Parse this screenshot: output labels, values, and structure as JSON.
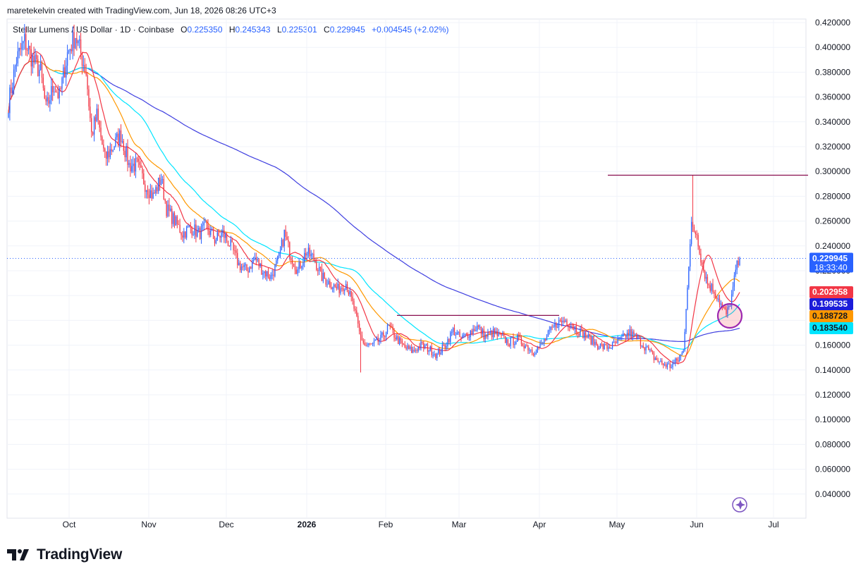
{
  "header": {
    "credit": "maretekelvin created with TradingView.com, Jun 18, 2026 08:26 UTC+3"
  },
  "legend": {
    "symbol": "Stellar Lumens / US Dollar · 1D · Coinbase",
    "open_label": "O",
    "open": "0.225350",
    "high_label": "H",
    "high": "0.245343",
    "low_label": "L",
    "low": "0.225301",
    "close_label": "C",
    "close": "0.229945",
    "change": "+0.004545 (+2.02%)"
  },
  "footer": {
    "brand": "TradingView",
    "logo_icon": "tradingview-logo-icon"
  },
  "colors": {
    "up": "#2962ff",
    "down": "#f23645",
    "ma_short": "#f23645",
    "ma_mid": "#ff9800",
    "ma_long": "#00e5ff",
    "ma_200": "#3f3fe0",
    "hline": "#880e4f",
    "grid": "#f0f3fa",
    "circle": "#9c27b0"
  },
  "chart_data": {
    "type": "candlestick",
    "x_ticks": [
      "Oct",
      "Nov",
      "Dec",
      "2026",
      "Feb",
      "Mar",
      "Apr",
      "May",
      "Jun",
      "Jul"
    ],
    "y_ticks": [
      "0.420000",
      "0.400000",
      "0.380000",
      "0.360000",
      "0.340000",
      "0.320000",
      "0.300000",
      "0.280000",
      "0.260000",
      "0.240000",
      "0.220000",
      "0.200000",
      "0.180000",
      "0.160000",
      "0.140000",
      "0.120000",
      "0.100000",
      "0.080000",
      "0.060000",
      "0.040000"
    ],
    "ylim": [
      0.028,
      0.425
    ],
    "price_labels": [
      {
        "value": 0.229945,
        "text": "0.229945",
        "sub": "18:33:40",
        "color": "#2962ff"
      },
      {
        "value": 0.202958,
        "text": "0.202958",
        "color": "#f23645"
      },
      {
        "value": 0.199535,
        "text": "0.199535",
        "color": "#1c1cd9"
      },
      {
        "value": 0.188728,
        "text": "0.188728",
        "color": "#ff9800"
      },
      {
        "value": 0.18354,
        "text": "0.183540",
        "color": "#00e5ff"
      }
    ],
    "resistance_line": {
      "value": 0.297,
      "from": "late May",
      "to": "Jul"
    },
    "support_line": {
      "value": 0.184,
      "from": "Feb",
      "to": "Apr"
    },
    "key_prices": {
      "start": 0.355,
      "sep_high": 0.415,
      "oct_high": 0.41,
      "dec_range": [
        0.23,
        0.25
      ],
      "jan_high": 0.25,
      "feb_low": 0.138,
      "may_low": 0.141,
      "jun_spike_high": 0.297,
      "last_close": 0.229945
    }
  }
}
